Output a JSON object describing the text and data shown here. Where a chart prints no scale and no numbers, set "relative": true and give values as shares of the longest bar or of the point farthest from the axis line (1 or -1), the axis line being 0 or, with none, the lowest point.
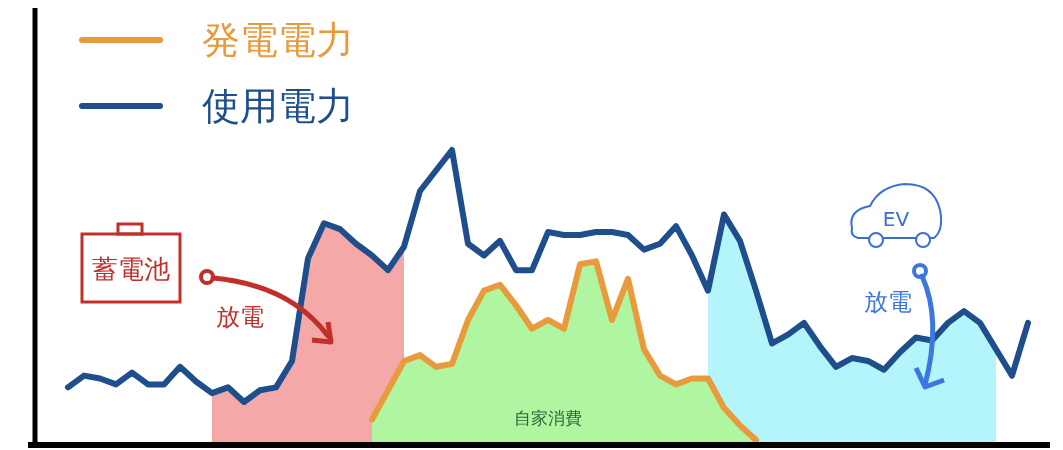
{
  "chart_data": {
    "type": "line",
    "relative": true,
    "legend": "top left",
    "categories": [
      null,
      null,
      null,
      null,
      null,
      null,
      null,
      null,
      null,
      null,
      null,
      null,
      null,
      null,
      null,
      null,
      null,
      null,
      null,
      null,
      null,
      null,
      null,
      null,
      null,
      null,
      null,
      null,
      null,
      null,
      null,
      null,
      null,
      null,
      null,
      null,
      null,
      null,
      null,
      null,
      null,
      null,
      null,
      null,
      null,
      null,
      null,
      null,
      null,
      null,
      null,
      null,
      null,
      null,
      null,
      null,
      null,
      null,
      null,
      null,
      null
    ],
    "series": [
      {
        "type": "area",
        "color": "#f4a9a8",
        "values": [
          null,
          null,
          null,
          null,
          null,
          null,
          null,
          null,
          null,
          0.17,
          0.19,
          0.14,
          0.18,
          0.19,
          0.28,
          0.63,
          0.75,
          0.73,
          0.68,
          0.64,
          0.59,
          0.67,
          null,
          null,
          null,
          null,
          null,
          null,
          null,
          null,
          null,
          null,
          null,
          null,
          null,
          null,
          null,
          null,
          null,
          null,
          null,
          null,
          null,
          null,
          null,
          null,
          null,
          null,
          null,
          null,
          null,
          null,
          null,
          null,
          null,
          null,
          null,
          null,
          null,
          null,
          null
        ]
      },
      {
        "type": "area",
        "color": "#b3f5fb",
        "values": [
          null,
          null,
          null,
          null,
          null,
          null,
          null,
          null,
          null,
          null,
          null,
          null,
          null,
          null,
          null,
          null,
          null,
          null,
          null,
          null,
          null,
          null,
          null,
          null,
          null,
          null,
          null,
          null,
          null,
          null,
          null,
          null,
          null,
          null,
          null,
          null,
          null,
          null,
          null,
          null,
          0.52,
          0.78,
          0.69,
          0.52,
          0.34,
          0.37,
          0.41,
          0.33,
          0.26,
          0.29,
          0.28,
          0.25,
          0.31,
          0.36,
          0.35,
          0.41,
          0.45,
          0.41,
          0.32,
          null,
          null
        ]
      },
      {
        "type": "area",
        "color": "#b0f5a0",
        "values": [
          null,
          null,
          null,
          null,
          null,
          null,
          null,
          null,
          null,
          null,
          null,
          null,
          null,
          null,
          null,
          null,
          null,
          null,
          null,
          0.08,
          0.18,
          0.28,
          0.3,
          0.26,
          0.27,
          0.42,
          0.52,
          0.54,
          0.47,
          0.39,
          0.42,
          0.39,
          0.61,
          0.62,
          0.42,
          0.56,
          0.32,
          0.23,
          0.2,
          0.22,
          0.22,
          0.12,
          0.06,
          0.01,
          null,
          null,
          null,
          null,
          null,
          null,
          null,
          null,
          null,
          null,
          null,
          null,
          null,
          null,
          null,
          null,
          null
        ]
      },
      {
        "name": "発電電力",
        "color": "#e89a3c",
        "values": [
          null,
          null,
          null,
          null,
          null,
          null,
          null,
          null,
          null,
          null,
          null,
          null,
          null,
          null,
          null,
          null,
          null,
          null,
          null,
          0.08,
          0.18,
          0.28,
          0.3,
          0.26,
          0.27,
          0.42,
          0.52,
          0.54,
          0.47,
          0.39,
          0.42,
          0.39,
          0.61,
          0.62,
          0.42,
          0.56,
          0.32,
          0.23,
          0.2,
          0.22,
          0.22,
          0.12,
          0.06,
          0.01,
          null,
          null,
          null,
          null,
          null,
          null,
          null,
          null,
          null,
          null,
          null,
          null,
          null,
          null,
          null,
          null,
          null
        ]
      },
      {
        "name": "使用電力",
        "color": "#1f4e8c",
        "values": [
          0.19,
          0.23,
          0.22,
          0.2,
          0.24,
          0.2,
          0.2,
          0.26,
          0.21,
          0.17,
          0.19,
          0.14,
          0.18,
          0.19,
          0.28,
          0.63,
          0.75,
          0.73,
          0.68,
          0.64,
          0.59,
          0.67,
          0.86,
          0.93,
          1.0,
          0.68,
          0.64,
          0.69,
          0.59,
          0.59,
          0.72,
          0.71,
          0.71,
          0.72,
          0.72,
          0.71,
          0.66,
          0.68,
          0.74,
          0.64,
          0.52,
          0.78,
          0.69,
          0.52,
          0.34,
          0.37,
          0.41,
          0.33,
          0.26,
          0.29,
          0.28,
          0.25,
          0.31,
          0.36,
          0.35,
          0.41,
          0.45,
          0.41,
          0.32,
          0.23,
          0.41
        ]
      }
    ],
    "annotations": [
      "蓄電池",
      "放電",
      "EV",
      "放電",
      "自家消費"
    ]
  }
}
